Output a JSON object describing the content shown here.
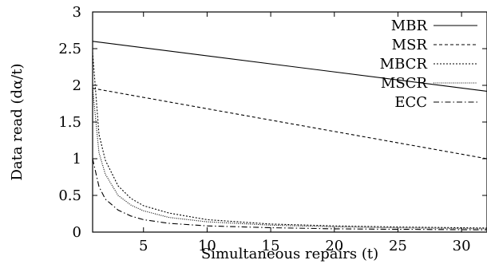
{
  "chart_data": {
    "type": "line",
    "title": "",
    "xlabel": "Simultaneous repairs (t)",
    "ylabel": "Data read (dα/t)",
    "xlim": [
      1,
      32
    ],
    "ylim": [
      0,
      3
    ],
    "xticks": [
      5,
      10,
      15,
      20,
      25,
      30
    ],
    "xtick_labels": [
      "5",
      "10",
      "15",
      "20",
      "25",
      "30"
    ],
    "yticks": [
      0,
      0.5,
      1,
      1.5,
      2,
      2.5,
      3
    ],
    "ytick_labels": [
      "0",
      "0.5",
      "1",
      "1.5",
      "2",
      "2.5",
      "3"
    ],
    "grid": false,
    "legend_position": "top-right",
    "series": [
      {
        "name": "MBR",
        "dash": "",
        "points": [
          [
            1,
            2.6
          ],
          [
            32,
            1.92
          ]
        ]
      },
      {
        "name": "MSR",
        "dash": "4,3",
        "points": [
          [
            1,
            1.96
          ],
          [
            32,
            1.0
          ]
        ]
      },
      {
        "name": "MBCR",
        "dash": "2,2",
        "points": [
          [
            1,
            2.45
          ],
          [
            1.5,
            1.33
          ],
          [
            2,
            0.98
          ],
          [
            3,
            0.63
          ],
          [
            4,
            0.46
          ],
          [
            5,
            0.36
          ],
          [
            7,
            0.26
          ],
          [
            10,
            0.17
          ],
          [
            15,
            0.11
          ],
          [
            20,
            0.085
          ],
          [
            25,
            0.07
          ],
          [
            32,
            0.055
          ]
        ]
      },
      {
        "name": "MSCR",
        "dash": "1,1.5",
        "points": [
          [
            1,
            1.96
          ],
          [
            1.5,
            1.08
          ],
          [
            2,
            0.79
          ],
          [
            3,
            0.5
          ],
          [
            4,
            0.37
          ],
          [
            5,
            0.29
          ],
          [
            7,
            0.2
          ],
          [
            10,
            0.14
          ],
          [
            15,
            0.095
          ],
          [
            20,
            0.072
          ],
          [
            25,
            0.058
          ],
          [
            32,
            0.045
          ]
        ]
      },
      {
        "name": "ECC",
        "dash": "7,3,1.5,3",
        "points": [
          [
            1,
            1.0
          ],
          [
            1.5,
            0.62
          ],
          [
            2,
            0.45
          ],
          [
            3,
            0.3
          ],
          [
            4,
            0.22
          ],
          [
            5,
            0.17
          ],
          [
            7,
            0.12
          ],
          [
            10,
            0.085
          ],
          [
            15,
            0.06
          ],
          [
            20,
            0.045
          ],
          [
            25,
            0.038
          ],
          [
            32,
            0.03
          ]
        ]
      }
    ]
  }
}
